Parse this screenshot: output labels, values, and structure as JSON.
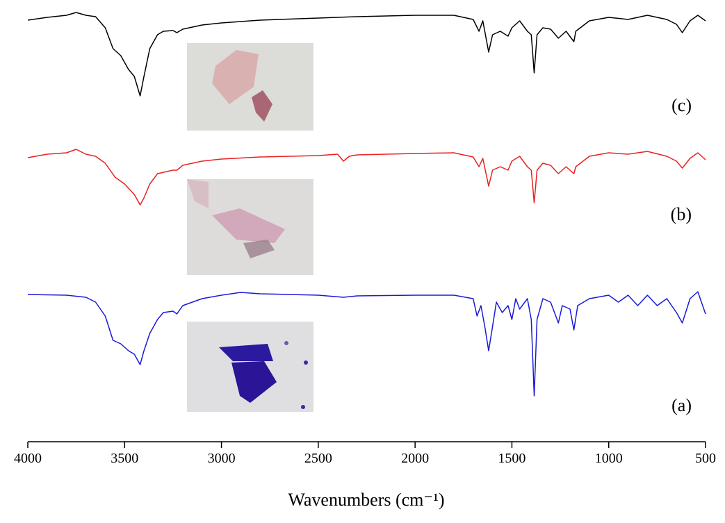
{
  "chart_data": {
    "type": "line",
    "x_label": "Wavenumbers (cm⁻¹)",
    "xlim": [
      4000,
      500
    ],
    "xticks": [
      4000,
      3500,
      3000,
      2500,
      2000,
      1500,
      1000,
      500
    ],
    "ylim": [
      0,
      626
    ],
    "series": [
      {
        "name": "(c)",
        "color": "#000000",
        "x": [
          4000,
          3900,
          3800,
          3750,
          3700,
          3650,
          3600,
          3560,
          3520,
          3480,
          3450,
          3420,
          3400,
          3370,
          3330,
          3300,
          3250,
          3230,
          3200,
          3100,
          3000,
          2800,
          2500,
          2300,
          2000,
          1800,
          1700,
          1670,
          1650,
          1620,
          1600,
          1560,
          1520,
          1500,
          1460,
          1420,
          1400,
          1385,
          1370,
          1340,
          1300,
          1260,
          1220,
          1180,
          1170,
          1100,
          1000,
          900,
          800,
          700,
          650,
          620,
          580,
          540,
          500
        ],
        "values": [
          607,
          611,
          614,
          618,
          614,
          612,
          596,
          566,
          556,
          536,
          526,
          498,
          526,
          566,
          586,
          591,
          592,
          589,
          594,
          600,
          603,
          607,
          610,
          612,
          614,
          614,
          608,
          591,
          606,
          561,
          586,
          591,
          584,
          596,
          606,
          591,
          586,
          531,
          586,
          596,
          594,
          581,
          591,
          576,
          591,
          606,
          611,
          608,
          614,
          608,
          601,
          589,
          606,
          614,
          606
        ]
      },
      {
        "name": "(b)",
        "color": "#e8211f",
        "x": [
          4000,
          3900,
          3800,
          3750,
          3700,
          3650,
          3600,
          3550,
          3500,
          3450,
          3420,
          3400,
          3370,
          3330,
          3250,
          3230,
          3200,
          3100,
          3000,
          2800,
          2500,
          2400,
          2370,
          2340,
          2300,
          2000,
          1800,
          1700,
          1670,
          1650,
          1620,
          1600,
          1560,
          1520,
          1500,
          1460,
          1420,
          1400,
          1385,
          1370,
          1340,
          1300,
          1260,
          1220,
          1180,
          1170,
          1100,
          1000,
          900,
          800,
          700,
          650,
          620,
          580,
          540,
          500
        ],
        "values": [
          409,
          414,
          416,
          421,
          414,
          411,
          401,
          381,
          371,
          356,
          341,
          351,
          371,
          386,
          391,
          391,
          398,
          404,
          407,
          410,
          412,
          414,
          404,
          411,
          413,
          415,
          416,
          410,
          396,
          408,
          368,
          391,
          396,
          391,
          404,
          411,
          396,
          391,
          344,
          391,
          401,
          398,
          386,
          396,
          386,
          396,
          411,
          416,
          414,
          418,
          411,
          404,
          394,
          408,
          416,
          406
        ]
      },
      {
        "name": "(a)",
        "color": "#1a1ad6",
        "x": [
          4000,
          3800,
          3700,
          3650,
          3600,
          3560,
          3520,
          3480,
          3450,
          3420,
          3400,
          3370,
          3330,
          3300,
          3250,
          3230,
          3200,
          3100,
          3000,
          2900,
          2800,
          2500,
          2370,
          2300,
          2000,
          1800,
          1700,
          1680,
          1660,
          1640,
          1620,
          1600,
          1580,
          1550,
          1520,
          1500,
          1480,
          1460,
          1420,
          1400,
          1385,
          1370,
          1340,
          1300,
          1260,
          1240,
          1200,
          1180,
          1160,
          1100,
          1000,
          950,
          900,
          850,
          800,
          750,
          700,
          650,
          620,
          580,
          540,
          500
        ],
        "values": [
          212,
          211,
          208,
          201,
          181,
          146,
          141,
          131,
          126,
          111,
          131,
          156,
          176,
          186,
          188,
          184,
          196,
          206,
          211,
          215,
          213,
          211,
          208,
          210,
          211,
          211,
          206,
          181,
          196,
          166,
          131,
          166,
          201,
          186,
          196,
          176,
          206,
          191,
          206,
          176,
          66,
          176,
          206,
          201,
          171,
          196,
          191,
          161,
          196,
          206,
          211,
          201,
          211,
          196,
          211,
          196,
          206,
          186,
          171,
          206,
          216,
          184
        ]
      }
    ]
  }
}
